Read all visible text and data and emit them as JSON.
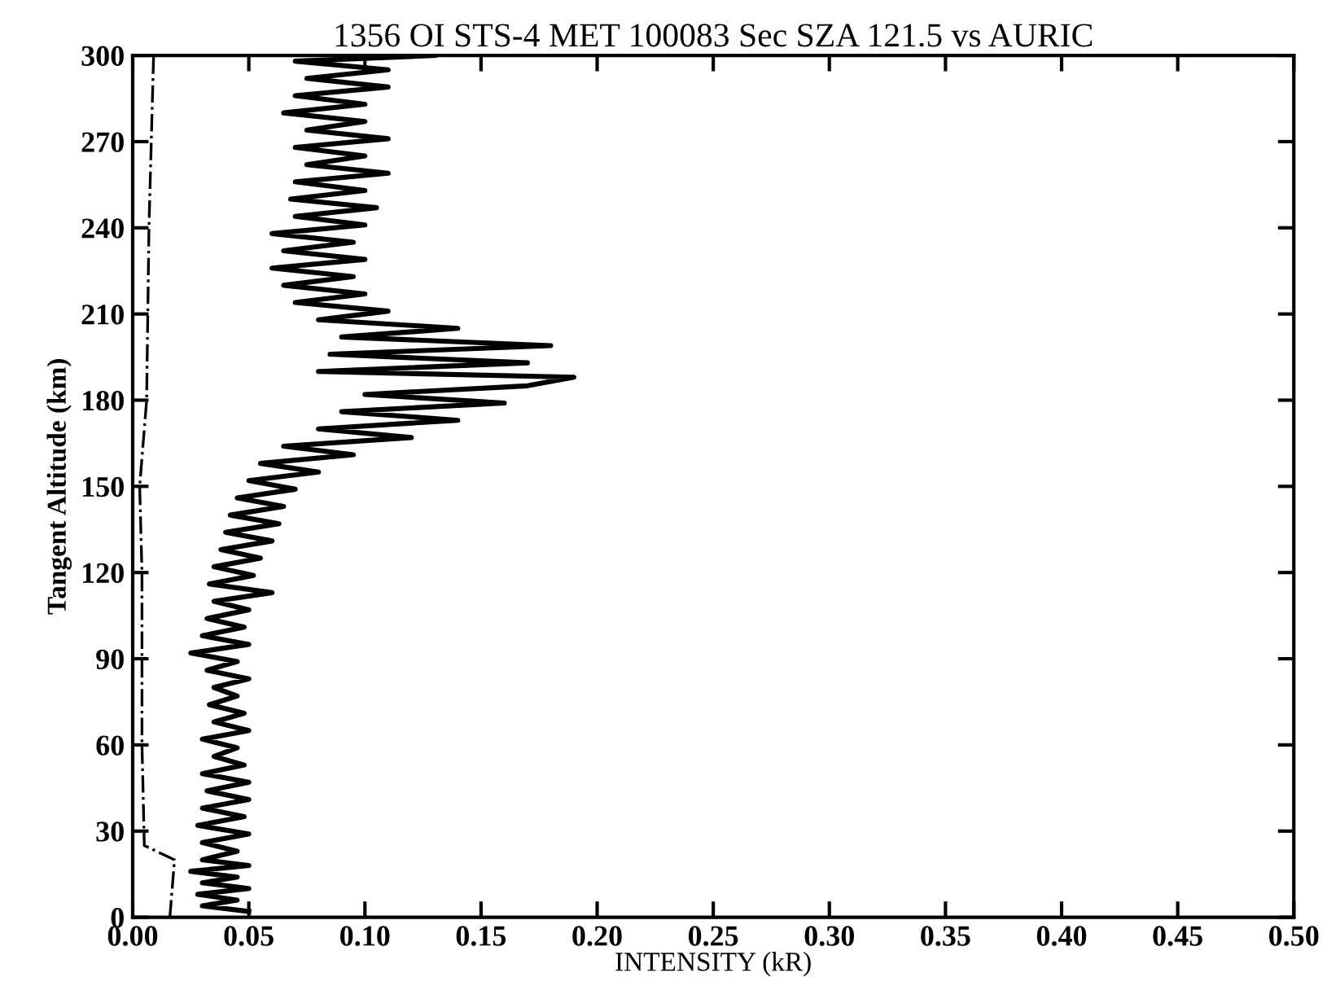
{
  "chart_data": {
    "type": "line",
    "title": "1356 OI STS-4 MET 100083 Sec SZA 121.5 vs AURIC",
    "xlabel": "INTENSITY (kR)",
    "ylabel": "Tangent Altitude (km)",
    "xlim": [
      0,
      0.5
    ],
    "xticks": [
      {
        "value": 0,
        "label": "0.00"
      },
      {
        "value": 0.05,
        "label": "0.05"
      },
      {
        "value": 0.1,
        "label": "0.10"
      },
      {
        "value": 0.15,
        "label": "0.15"
      },
      {
        "value": 0.2,
        "label": "0.20"
      },
      {
        "value": 0.25,
        "label": "0.25"
      },
      {
        "value": 0.3,
        "label": "0.30"
      },
      {
        "value": 0.35,
        "label": "0.35"
      },
      {
        "value": 0.4,
        "label": "0.40"
      },
      {
        "value": 0.45,
        "label": "0.45"
      },
      {
        "value": 0.5,
        "label": "0.50"
      }
    ],
    "ylim": [
      0,
      300
    ],
    "yticks": [
      0,
      30,
      60,
      90,
      120,
      150,
      180,
      210,
      240,
      270,
      300
    ],
    "grid": false,
    "legend": false,
    "series": [
      {
        "color": "#000000",
        "line_style": "solid",
        "x": [
          0.05,
          0.03,
          0.045,
          0.028,
          0.05,
          0.03,
          0.045,
          0.025,
          0.05,
          0.03,
          0.045,
          0.03,
          0.05,
          0.028,
          0.048,
          0.03,
          0.05,
          0.032,
          0.05,
          0.03,
          0.048,
          0.035,
          0.045,
          0.03,
          0.05,
          0.035,
          0.048,
          0.033,
          0.045,
          0.035,
          0.05,
          0.032,
          0.045,
          0.025,
          0.05,
          0.03,
          0.048,
          0.032,
          0.05,
          0.035,
          0.06,
          0.033,
          0.052,
          0.035,
          0.055,
          0.038,
          0.06,
          0.04,
          0.063,
          0.042,
          0.065,
          0.045,
          0.07,
          0.05,
          0.08,
          0.055,
          0.095,
          0.065,
          0.12,
          0.08,
          0.14,
          0.09,
          0.16,
          0.1,
          0.17,
          0.19,
          0.08,
          0.17,
          0.085,
          0.18,
          0.09,
          0.14,
          0.08,
          0.11,
          0.07,
          0.1,
          0.065,
          0.095,
          0.06,
          0.1,
          0.065,
          0.095,
          0.06,
          0.1,
          0.07,
          0.105,
          0.068,
          0.1,
          0.07,
          0.11,
          0.075,
          0.1,
          0.07,
          0.11,
          0.075,
          0.1,
          0.065,
          0.1,
          0.07,
          0.11,
          0.075,
          0.11,
          0.07,
          0.13
        ],
        "values": [
          2,
          4,
          6,
          8,
          10,
          12,
          14,
          16,
          18,
          20,
          23,
          26,
          29,
          32,
          35,
          38,
          41,
          44,
          47,
          50,
          53,
          56,
          59,
          62,
          65,
          68,
          71,
          74,
          77,
          80,
          83,
          86,
          89,
          92,
          95,
          98,
          101,
          104,
          107,
          110,
          113,
          116,
          119,
          122,
          125,
          128,
          131,
          134,
          137,
          140,
          143,
          146,
          149,
          152,
          155,
          158,
          161,
          164,
          167,
          170,
          173,
          176,
          179,
          182,
          185,
          188,
          190,
          193,
          196,
          199,
          202,
          205,
          208,
          211,
          214,
          217,
          220,
          223,
          226,
          229,
          232,
          235,
          238,
          241,
          244,
          247,
          250,
          253,
          256,
          259,
          262,
          265,
          268,
          271,
          274,
          277,
          280,
          283,
          286,
          289,
          292,
          295,
          298,
          300
        ]
      },
      {
        "color": "#000000",
        "line_style": "dotted",
        "x": [
          0.016,
          0.018,
          0.005,
          0.004,
          0.004,
          0.003,
          0.006,
          0.007,
          0.009
        ],
        "values": [
          0,
          20,
          25,
          60,
          120,
          150,
          180,
          240,
          300
        ]
      }
    ]
  }
}
